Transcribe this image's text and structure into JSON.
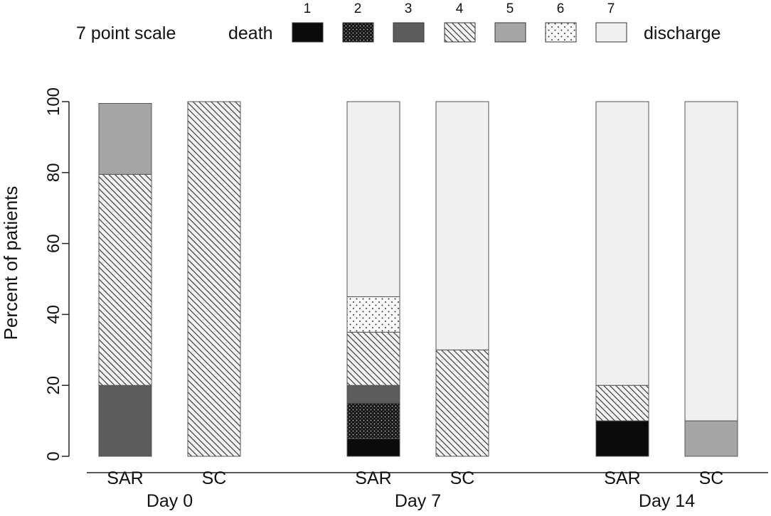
{
  "chart_data": {
    "type": "stacked-bar",
    "title": "",
    "ylabel": "Percent of patients",
    "xlabel": "",
    "ylim": [
      0,
      100
    ],
    "yticks": [
      0,
      20,
      40,
      60,
      80,
      100
    ],
    "legend": {
      "title": "7 point scale",
      "start_label": "death",
      "end_label": "discharge",
      "levels": [
        {
          "code": "1",
          "pattern": "black",
          "color": "#0b0b0b"
        },
        {
          "code": "2",
          "pattern": "dots-dark",
          "color": "#1a1a1a"
        },
        {
          "code": "3",
          "pattern": "dark-gray",
          "color": "#5c5c5c"
        },
        {
          "code": "4",
          "pattern": "hatch",
          "color": "#eaeaea"
        },
        {
          "code": "5",
          "pattern": "mid-gray",
          "color": "#a6a6a6"
        },
        {
          "code": "6",
          "pattern": "dots-light",
          "color": "#fafafa"
        },
        {
          "code": "7",
          "pattern": "light-gray",
          "color": "#f0f0f0"
        }
      ]
    },
    "groups": [
      {
        "label": "Day 0",
        "bars": [
          {
            "label": "SAR",
            "segments": {
              "3": 20,
              "4": 59.5,
              "5": 20
            }
          },
          {
            "label": "SC",
            "segments": {
              "4": 100
            }
          }
        ]
      },
      {
        "label": "Day 7",
        "bars": [
          {
            "label": "SAR",
            "segments": {
              "1": 5,
              "2": 10,
              "3": 5,
              "4": 15,
              "6": 10,
              "7": 55
            }
          },
          {
            "label": "SC",
            "segments": {
              "4": 30,
              "7": 70
            }
          }
        ]
      },
      {
        "label": "Day 14",
        "bars": [
          {
            "label": "SAR",
            "segments": {
              "1": 10,
              "4": 10,
              "7": 80
            }
          },
          {
            "label": "SC",
            "segments": {
              "5": 10,
              "7": 90
            }
          }
        ]
      }
    ]
  }
}
